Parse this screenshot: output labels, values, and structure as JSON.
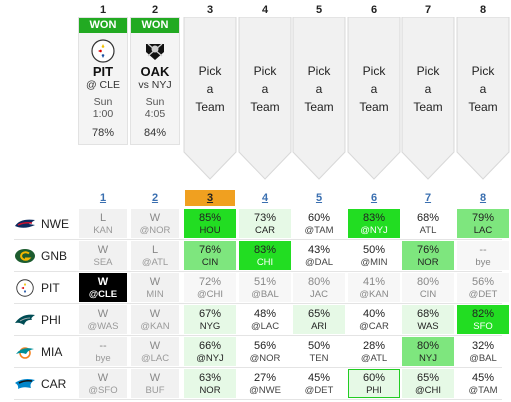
{
  "weeks": [
    "1",
    "2",
    "3",
    "4",
    "5",
    "6",
    "7",
    "8"
  ],
  "picks": [
    {
      "status": "WON",
      "team": "PIT",
      "opponent": "@ CLE",
      "day": "Sun",
      "time": "1:00",
      "pct": "78%"
    },
    {
      "status": "WON",
      "team": "OAK",
      "opponent": "vs NYJ",
      "day": "Sun",
      "time": "4:05",
      "pct": "84%"
    }
  ],
  "pick_placeholder": {
    "line1": "Pick",
    "line2": "a",
    "line3": "Team"
  },
  "grid_headers": [
    "1",
    "2",
    "3",
    "4",
    "5",
    "6",
    "7",
    "8"
  ],
  "current_week": "3",
  "rows": [
    {
      "team": "NWE",
      "cells": [
        {
          "v": "L",
          "o": "KAN"
        },
        {
          "v": "W",
          "o": "@NOR"
        },
        {
          "v": "85%",
          "o": "HOU"
        },
        {
          "v": "73%",
          "o": "CAR"
        },
        {
          "v": "60%",
          "o": "@TAM"
        },
        {
          "v": "83%",
          "o": "@NYJ"
        },
        {
          "v": "68%",
          "o": "ATL"
        },
        {
          "v": "79%",
          "o": "LAC"
        }
      ]
    },
    {
      "team": "GNB",
      "cells": [
        {
          "v": "W",
          "o": "SEA"
        },
        {
          "v": "L",
          "o": "@ATL"
        },
        {
          "v": "76%",
          "o": "CIN"
        },
        {
          "v": "83%",
          "o": "CHI"
        },
        {
          "v": "43%",
          "o": "@DAL"
        },
        {
          "v": "50%",
          "o": "@MIN"
        },
        {
          "v": "76%",
          "o": "NOR"
        },
        {
          "v": "--",
          "o": "bye"
        }
      ]
    },
    {
      "team": "PIT",
      "cells": [
        {
          "v": "W",
          "o": "@CLE"
        },
        {
          "v": "W",
          "o": "MIN"
        },
        {
          "v": "72%",
          "o": "@CHI"
        },
        {
          "v": "51%",
          "o": "@BAL"
        },
        {
          "v": "80%",
          "o": "JAC"
        },
        {
          "v": "41%",
          "o": "@KAN"
        },
        {
          "v": "80%",
          "o": "CIN"
        },
        {
          "v": "56%",
          "o": "@DET"
        }
      ]
    },
    {
      "team": "PHI",
      "cells": [
        {
          "v": "W",
          "o": "@WAS"
        },
        {
          "v": "W",
          "o": "@KAN"
        },
        {
          "v": "67%",
          "o": "NYG"
        },
        {
          "v": "48%",
          "o": "@LAC"
        },
        {
          "v": "65%",
          "o": "ARI"
        },
        {
          "v": "40%",
          "o": "@CAR"
        },
        {
          "v": "68%",
          "o": "WAS"
        },
        {
          "v": "82%",
          "o": "SFO"
        }
      ]
    },
    {
      "team": "MIA",
      "cells": [
        {
          "v": "--",
          "o": "bye"
        },
        {
          "v": "W",
          "o": "@LAC"
        },
        {
          "v": "66%",
          "o": "@NYJ"
        },
        {
          "v": "56%",
          "o": "@NOR"
        },
        {
          "v": "50%",
          "o": "TEN"
        },
        {
          "v": "28%",
          "o": "@ATL"
        },
        {
          "v": "80%",
          "o": "NYJ"
        },
        {
          "v": "32%",
          "o": "@BAL"
        }
      ]
    },
    {
      "team": "CAR",
      "cells": [
        {
          "v": "W",
          "o": "@SFO"
        },
        {
          "v": "W",
          "o": "BUF"
        },
        {
          "v": "63%",
          "o": "NOR"
        },
        {
          "v": "27%",
          "o": "@NWE"
        },
        {
          "v": "45%",
          "o": "@DET"
        },
        {
          "v": "60%",
          "o": "PHI"
        },
        {
          "v": "65%",
          "o": "@CHI"
        },
        {
          "v": "45%",
          "o": "@TAM"
        }
      ]
    }
  ],
  "colors": {
    "won": "#22aa22",
    "current": "#f0a020",
    "strong": "#22dd22",
    "mid": "#7ee67e",
    "light": "#e6f9e6",
    "link": "#3a6fb0"
  },
  "icons": {
    "NWE": "patriots-logo-icon",
    "GNB": "packers-logo-icon",
    "PIT": "steelers-logo-icon",
    "PHI": "eagles-logo-icon",
    "MIA": "dolphins-logo-icon",
    "CAR": "panthers-logo-icon",
    "OAK": "raiders-logo-icon"
  }
}
